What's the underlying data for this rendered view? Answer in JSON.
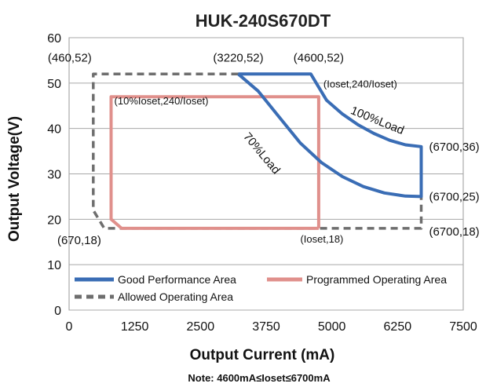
{
  "chart_data": {
    "type": "line",
    "title": "HUK-240S670DT",
    "xlabel": "Output Current (mA)",
    "ylabel": "Output Voltage(V)",
    "xlim": [
      0,
      7500
    ],
    "ylim": [
      0,
      60
    ],
    "x_ticks": [
      "0",
      "1250",
      "2500",
      "3750",
      "5000",
      "6250",
      "7500"
    ],
    "y_ticks": [
      "0",
      "10",
      "20",
      "30",
      "40",
      "50",
      "60"
    ],
    "grid": "horizontal",
    "legend_placement": "bottom-left",
    "note": "Note:  4600mA≤Ioset≤6700mA",
    "series": [
      {
        "name": "Good Performance Area",
        "color": "#3a6db5",
        "style": "solid",
        "points": [
          [
            3220,
            52
          ],
          [
            4600,
            52
          ],
          [
            4900,
            46.2
          ],
          [
            5200,
            43.2
          ],
          [
            5500,
            40.8
          ],
          [
            5800,
            38.9
          ],
          [
            6100,
            37.4
          ],
          [
            6400,
            36.4
          ],
          [
            6700,
            36
          ],
          [
            6700,
            25
          ],
          [
            6400,
            25.1
          ],
          [
            6000,
            25.8
          ],
          [
            5600,
            27.2
          ],
          [
            5200,
            29.4
          ],
          [
            4800,
            32.5
          ],
          [
            4400,
            36.8
          ],
          [
            4000,
            42.5
          ],
          [
            3600,
            48.2
          ],
          [
            3220,
            52
          ]
        ]
      },
      {
        "name": "Programmed Operating Area",
        "color": "#e0908c",
        "style": "solid",
        "points": [
          [
            4750,
            18
          ],
          [
            4750,
            47
          ],
          [
            800,
            47
          ],
          [
            800,
            20
          ],
          [
            1000,
            18
          ],
          [
            4750,
            18
          ]
        ]
      },
      {
        "name": "Allowed Operating Area",
        "color": "#6e6e6e",
        "style": "dashed",
        "points": [
          [
            3220,
            52
          ],
          [
            460,
            52
          ],
          [
            460,
            22
          ],
          [
            670,
            18
          ],
          [
            6700,
            18
          ],
          [
            6700,
            25
          ]
        ]
      }
    ],
    "annotations": [
      {
        "text": "(460,52)",
        "x": 460,
        "y": 52
      },
      {
        "text": "(3220,52)",
        "x": 3220,
        "y": 52
      },
      {
        "text": "(4600,52)",
        "x": 4600,
        "y": 52
      },
      {
        "text": "(Ioset,240/Ioset)",
        "x": 4750,
        "y": 49
      },
      {
        "text": "100%Load",
        "x": 5900,
        "y": 41
      },
      {
        "text": "70%Load",
        "x": 4000,
        "y": 34
      },
      {
        "text": "(6700,36)",
        "x": 6700,
        "y": 36
      },
      {
        "text": "(6700,25)",
        "x": 6700,
        "y": 25
      },
      {
        "text": "(10%Ioset,240/Ioset)",
        "x": 800,
        "y": 47
      },
      {
        "text": "(670,18)",
        "x": 670,
        "y": 18
      },
      {
        "text": "(Ioset,18)",
        "x": 4750,
        "y": 18
      },
      {
        "text": "(6700,18)",
        "x": 6700,
        "y": 18
      }
    ]
  }
}
